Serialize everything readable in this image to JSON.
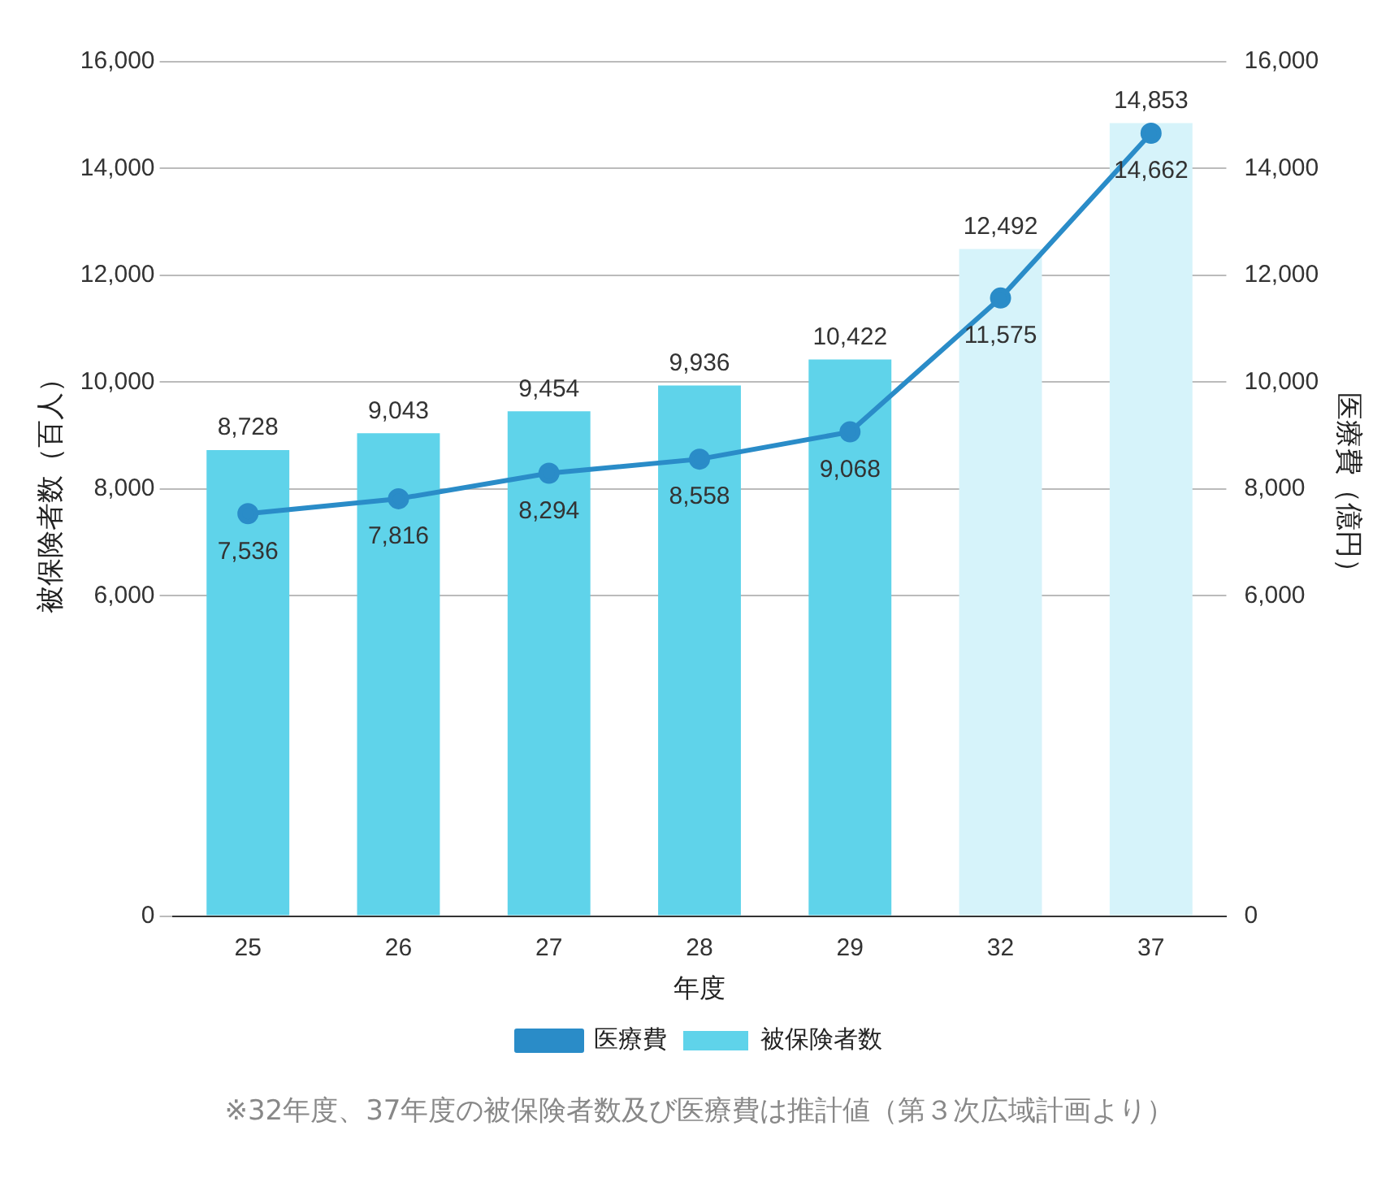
{
  "chart_data": {
    "type": "bar",
    "xlabel": "年度",
    "ylabel": "被保険者数（百人）",
    "y2label": "医療費（億円）",
    "categories": [
      "25",
      "26",
      "27",
      "28",
      "29",
      "32",
      "37"
    ],
    "series": [
      {
        "name": "被保険者数",
        "color": "#5fd3ea",
        "colors": [
          "#5fd3ea",
          "#5fd3ea",
          "#5fd3ea",
          "#5fd3ea",
          "#5fd3ea",
          "#d6f3fa",
          "#d6f3fa"
        ],
        "values": [
          8728,
          9043,
          9454,
          9936,
          10422,
          12492,
          14853
        ],
        "value_labels": [
          "8,728",
          "9,043",
          "9,454",
          "9,936",
          "10,422",
          "12,492",
          "14,853"
        ]
      },
      {
        "name": "医療費",
        "type": "line",
        "axis": "y2",
        "color": "#2a8cc8",
        "values": [
          7536,
          7816,
          8294,
          8558,
          9068,
          11575,
          14662
        ],
        "value_labels": [
          "7,536",
          "7,816",
          "8,294",
          "8,558",
          "9,068",
          "11,575",
          "14,662"
        ]
      }
    ],
    "ylim": [
      0,
      16000
    ],
    "yticks": [
      {
        "value": 0,
        "label": "0"
      },
      {
        "value": 6000,
        "label": "6,000"
      },
      {
        "value": 8000,
        "label": "8,000"
      },
      {
        "value": 10000,
        "label": "10,000"
      },
      {
        "value": 12000,
        "label": "12,000"
      },
      {
        "value": 14000,
        "label": "14,000"
      },
      {
        "value": 16000,
        "label": "16,000"
      }
    ],
    "y2lim": [
      0,
      16000
    ],
    "y2ticks": [
      {
        "value": 0,
        "label": "0"
      },
      {
        "value": 6000,
        "label": "6,000"
      },
      {
        "value": 8000,
        "label": "8,000"
      },
      {
        "value": 10000,
        "label": "10,000"
      },
      {
        "value": 12000,
        "label": "12,000"
      },
      {
        "value": 14000,
        "label": "14,000"
      },
      {
        "value": 16000,
        "label": "16,000"
      }
    ],
    "grid": "y",
    "legend": "bottom",
    "marker": "circle",
    "line_style": "solid",
    "annotations": [
      "※32年度、37年度の被保険者数及び医療費は推計値（第３次広域計画より）"
    ]
  }
}
